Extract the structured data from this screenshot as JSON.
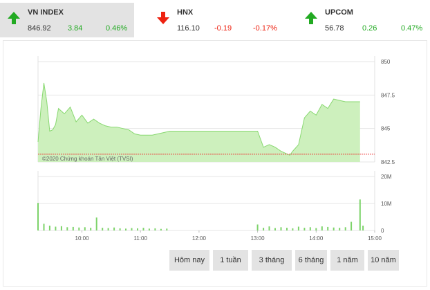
{
  "indices": [
    {
      "name": "VN INDEX",
      "value": "846.92",
      "change": "3.84",
      "percent": "0.46%",
      "direction": "up",
      "active": true
    },
    {
      "name": "HNX",
      "value": "116.10",
      "change": "-0.19",
      "percent": "-0.17%",
      "direction": "down",
      "active": false
    },
    {
      "name": "UPCOM",
      "value": "56.78",
      "change": "0.26",
      "percent": "0.47%",
      "direction": "up",
      "active": false
    }
  ],
  "colors": {
    "up": "#22aa22",
    "down": "#ee2211",
    "area_fill": "#cdf0bd",
    "area_line": "#88d870",
    "reference": "#ee3333",
    "volume": "#7dd36a"
  },
  "chart_data": {
    "type": "area",
    "price": {
      "y_ticks": [
        "850",
        "847.5",
        "845",
        "842.5"
      ],
      "ylim": [
        842.5,
        850
      ],
      "reference": 843.08,
      "series_time_hours": [
        9.25,
        9.3,
        9.35,
        9.4,
        9.45,
        9.5,
        9.55,
        9.6,
        9.7,
        9.8,
        9.9,
        10.0,
        10.1,
        10.2,
        10.3,
        10.4,
        10.5,
        10.6,
        10.7,
        10.8,
        10.9,
        11.0,
        11.1,
        11.2,
        11.3,
        11.4,
        11.5,
        13.0,
        13.1,
        13.2,
        13.3,
        13.4,
        13.5,
        13.55,
        13.6,
        13.7,
        13.8,
        13.9,
        14.0,
        14.1,
        14.2,
        14.3,
        14.4,
        14.5,
        14.6,
        14.75
      ],
      "series_values": [
        844.0,
        846.5,
        848.4,
        847.0,
        844.8,
        844.9,
        845.3,
        846.5,
        846.1,
        846.6,
        845.5,
        846.0,
        845.4,
        845.7,
        845.4,
        845.2,
        845.1,
        845.1,
        845.0,
        844.9,
        844.6,
        844.5,
        844.5,
        844.5,
        844.6,
        844.7,
        844.8,
        844.8,
        843.6,
        843.8,
        843.6,
        843.3,
        843.1,
        843.0,
        843.3,
        843.8,
        845.8,
        846.3,
        846.0,
        846.8,
        846.5,
        847.2,
        847.1,
        847.0,
        847.0,
        847.0
      ]
    },
    "watermark": "©2020 Chứng khoán Tân Việt (TVSI)",
    "volume": {
      "y_ticks": [
        "20M",
        "10M",
        "0"
      ],
      "ylim": [
        0,
        20
      ],
      "unit": "M",
      "series_time_hours": [
        9.25,
        9.35,
        9.45,
        9.55,
        9.65,
        9.75,
        9.85,
        9.95,
        10.05,
        10.15,
        10.25,
        10.35,
        10.45,
        10.55,
        10.65,
        10.75,
        10.85,
        10.95,
        11.05,
        11.15,
        11.25,
        11.35,
        11.45,
        13.0,
        13.1,
        13.2,
        13.3,
        13.4,
        13.5,
        13.6,
        13.7,
        13.8,
        13.9,
        14.0,
        14.1,
        14.2,
        14.3,
        14.4,
        14.5,
        14.6,
        14.75,
        14.8
      ],
      "series_values": [
        10.2,
        2.5,
        1.8,
        1.4,
        1.6,
        1.2,
        1.3,
        1.1,
        1.2,
        1.0,
        4.8,
        1.0,
        0.9,
        1.1,
        0.8,
        0.7,
        0.9,
        0.8,
        1.0,
        0.7,
        0.8,
        0.6,
        0.7,
        2.2,
        1.0,
        1.5,
        0.9,
        1.2,
        1.0,
        0.8,
        1.4,
        1.0,
        1.2,
        0.9,
        1.5,
        1.3,
        1.1,
        1.0,
        1.2,
        3.2,
        11.5,
        1.8
      ]
    },
    "x_ticks": [
      "10:00",
      "11:00",
      "12:00",
      "13:00",
      "14:00",
      "15:00"
    ],
    "x_tick_hours": [
      10,
      11,
      12,
      13,
      14,
      15
    ],
    "xlim_hours": [
      9.25,
      15.0
    ]
  },
  "range_buttons": [
    "Hôm nay",
    "1 tuần",
    "3 tháng",
    "6 tháng",
    "1 năm",
    "10 năm"
  ]
}
